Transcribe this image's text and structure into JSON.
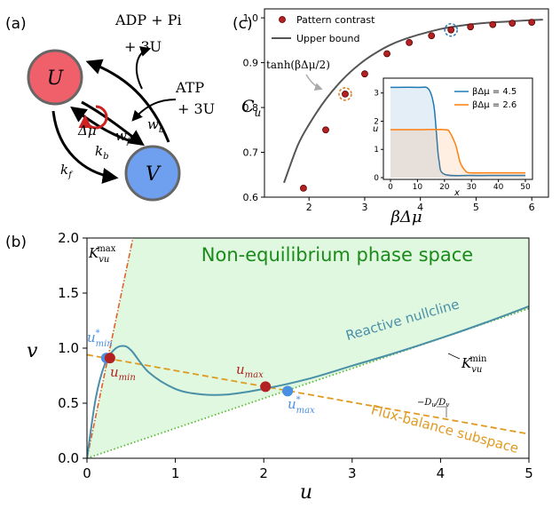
{
  "panel_a": {
    "label": "(a)",
    "node_u": "U",
    "node_v": "V",
    "adp_pi": "ADP + Pi",
    "plus3u_top": "+ 3U",
    "atp": "ATP",
    "plus3u_right": "+ 3U",
    "delta_mu": "Δμ",
    "w_f": "w",
    "w_f_sub": "f",
    "w_b": "w",
    "w_b_sub": "b",
    "k_b": "k",
    "k_b_sub": "b",
    "k_f": "k",
    "k_f_sub": "f",
    "colors": {
      "u_fill": "#f0606a",
      "v_fill": "#6fa0f0",
      "node_stroke": "#666666",
      "cycle": "#cc2222"
    }
  },
  "panel_c": {
    "label": "(c)",
    "ylabel_main": "C",
    "ylabel_sub": "u",
    "xlabel": "βΔμ",
    "annotation": "tanh(βΔμ/2)",
    "legend": [
      "Pattern contrast",
      "Upper bound"
    ],
    "inset_legend": [
      "βΔμ = 4.5",
      "βΔμ = 2.6"
    ],
    "inset_xlabel": "x",
    "inset_ylabel": "u",
    "colors": {
      "points": "#b22222",
      "bound": "#555555",
      "highlight_orange": "#e07b20",
      "highlight_blue": "#2a7ab5",
      "inset_blue": "#1f77b4",
      "inset_orange": "#ff7f0e"
    }
  },
  "panel_b": {
    "label": "(b)",
    "title": "Non-equilibrium phase space",
    "xlabel": "u",
    "ylabel": "v",
    "kmax_main": "K",
    "kmax_sub": "vu",
    "kmax_sup": "max",
    "kmin_main": "K",
    "kmin_sub": "vu",
    "kmin_sup": "min",
    "reactive_nullcline": "Reactive nullcline",
    "flux_balance": "Flux-balance subspace",
    "slope_label": "−D",
    "slope_label_sub1": "u",
    "slope_label_mid": "/D",
    "slope_label_sub2": "v",
    "u_mm_main": "u",
    "u_mm_sup": "*",
    "u_mm_sub": "min",
    "u_min_main": "u",
    "u_min_sub": "min",
    "u_max_main": "u",
    "u_max_sub": "max",
    "u_mx_main": "u",
    "u_mx_sup": "*",
    "u_mx_sub": "max",
    "colors": {
      "region": "#dff8df",
      "title": "#1a8a1a",
      "nullcline": "#4a8fa8",
      "flux": "#e09a20",
      "kmax": "#e0622a",
      "kmin": "#5fb83a",
      "red_pt": "#b22222",
      "blue_pt": "#4a90e2"
    }
  },
  "chart_data": [
    {
      "type": "scatter",
      "panel": "(c)",
      "xlabel": "βΔμ",
      "ylabel": "C_u",
      "xlim": [
        1.2,
        6.3
      ],
      "ylim": [
        0.6,
        1.02
      ],
      "xticks": [
        2,
        3,
        4,
        5,
        6
      ],
      "yticks": [
        0.6,
        0.7,
        0.8,
        0.9,
        1.0
      ],
      "series": [
        {
          "name": "Pattern contrast",
          "x": [
            1.9,
            2.3,
            2.65,
            3.0,
            3.4,
            3.8,
            4.2,
            4.55,
            4.9,
            5.3,
            5.65,
            6.0
          ],
          "y": [
            0.62,
            0.75,
            0.83,
            0.875,
            0.92,
            0.945,
            0.96,
            0.973,
            0.98,
            0.985,
            0.988,
            0.99
          ]
        },
        {
          "name": "Upper bound",
          "x": [
            1.55,
            1.8,
            2.0,
            2.3,
            2.6,
            2.9,
            3.2,
            3.5,
            3.8,
            4.1,
            4.4,
            4.8,
            5.2,
            5.6,
            6.0,
            6.2
          ],
          "y": [
            0.632,
            0.716,
            0.762,
            0.818,
            0.862,
            0.896,
            0.922,
            0.942,
            0.956,
            0.967,
            0.976,
            0.984,
            0.989,
            0.992,
            0.995,
            0.996
          ]
        }
      ]
    },
    {
      "type": "line",
      "panel": "(c) inset",
      "xlabel": "x",
      "ylabel": "u",
      "xlim": [
        0,
        50
      ],
      "ylim": [
        0,
        3.4
      ],
      "xticks": [
        0,
        10,
        20,
        30,
        40,
        50
      ],
      "yticks": [
        0,
        1,
        2,
        3
      ],
      "series": [
        {
          "name": "βΔμ = 4.5",
          "x": [
            0,
            10,
            14,
            16,
            17,
            18,
            20,
            30,
            40,
            50
          ],
          "y": [
            3.2,
            3.2,
            3.15,
            2.6,
            1.6,
            0.6,
            0.12,
            0.08,
            0.08,
            0.08
          ]
        },
        {
          "name": "βΔμ = 2.6",
          "x": [
            0,
            10,
            20,
            22,
            24,
            25,
            26,
            28,
            30,
            40,
            50
          ],
          "y": [
            1.7,
            1.7,
            1.7,
            1.6,
            1.2,
            0.85,
            0.5,
            0.22,
            0.17,
            0.17,
            0.17
          ]
        }
      ]
    },
    {
      "type": "line",
      "panel": "(b)",
      "xlabel": "u",
      "ylabel": "v",
      "xlim": [
        0,
        5
      ],
      "ylim": [
        0,
        2.0
      ],
      "xticks": [
        0,
        1,
        2,
        3,
        4,
        5
      ],
      "yticks": [
        0.0,
        0.5,
        1.0,
        1.5,
        2.0
      ],
      "series": [
        {
          "name": "Reactive nullcline",
          "x": [
            0,
            0.1,
            0.2,
            0.3,
            0.4,
            0.5,
            0.7,
            1.0,
            1.3,
            1.6,
            2.0,
            2.5,
            3.0,
            3.5,
            4.0,
            4.5,
            5.0
          ],
          "y": [
            0,
            0.55,
            0.85,
            0.98,
            1.02,
            0.98,
            0.78,
            0.63,
            0.58,
            0.58,
            0.63,
            0.72,
            0.84,
            0.96,
            1.09,
            1.23,
            1.38
          ]
        },
        {
          "name": "Flux-balance subspace",
          "x": [
            0,
            5
          ],
          "y": [
            0.94,
            0.22
          ]
        },
        {
          "name": "K_vu^max",
          "x": [
            0,
            0.52
          ],
          "y": [
            0,
            2.0
          ]
        },
        {
          "name": "K_vu^min",
          "x": [
            0,
            5
          ],
          "y": [
            0,
            1.36
          ]
        },
        {
          "name": "u_min",
          "x": [
            0.26
          ],
          "y": [
            0.91
          ]
        },
        {
          "name": "u_max",
          "x": [
            2.02
          ],
          "y": [
            0.65
          ]
        },
        {
          "name": "u*_min",
          "x": [
            0.22
          ],
          "y": [
            0.91
          ]
        },
        {
          "name": "u*_max",
          "x": [
            2.27
          ],
          "y": [
            0.61
          ]
        }
      ]
    }
  ]
}
